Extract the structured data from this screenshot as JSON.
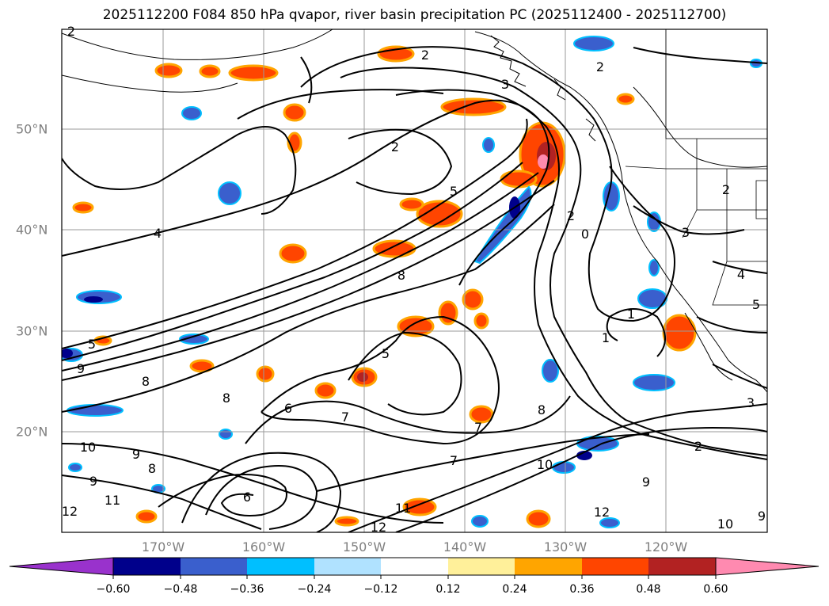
{
  "title": "2025112200 F084 850 hPa qvapor, river basin precipitation PC (2025112400 - 2025112700)",
  "map": {
    "lon_labels": [
      "170°W",
      "160°W",
      "150°W",
      "140°W",
      "130°W",
      "120°W"
    ],
    "lat_labels": [
      "50°N",
      "40°N",
      "30°N",
      "20°N"
    ],
    "contour_labels": [
      "2",
      "2",
      "3",
      "2",
      "2",
      "2",
      "4",
      "5",
      "8",
      "2",
      "0",
      "3",
      "4",
      "1",
      "1",
      "5",
      "5",
      "9",
      "8",
      "5",
      "8",
      "6",
      "7",
      "7",
      "7",
      "8",
      "2",
      "3",
      "10",
      "9",
      "8",
      "9",
      "10",
      "9",
      "11",
      "6",
      "11",
      "12",
      "12",
      "10",
      "12",
      "9"
    ]
  },
  "colorbar": {
    "ticks": [
      "−0.60",
      "−0.48",
      "−0.36",
      "−0.24",
      "−0.12",
      "0.12",
      "0.24",
      "0.36",
      "0.48",
      "0.60"
    ],
    "colors": [
      "#9932cc",
      "#00008b",
      "#3a5fcd",
      "#00bfff",
      "#b0e2ff",
      "#ffffff",
      "#fff09a",
      "#ffa500",
      "#ff4500",
      "#b22222",
      "#ff8ab0"
    ]
  }
}
